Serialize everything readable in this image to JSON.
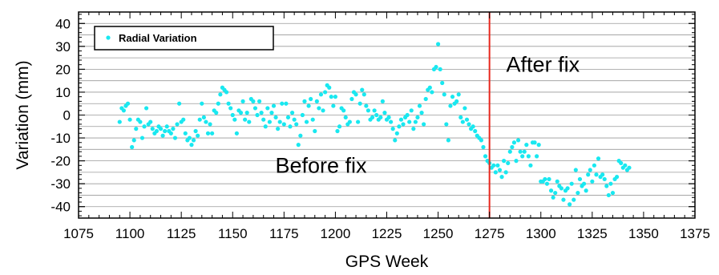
{
  "chart_data": {
    "type": "scatter",
    "xlabel": "GPS Week",
    "ylabel": "Variation (mm)",
    "xlim": [
      1075,
      1375
    ],
    "ylim": [
      -45,
      45
    ],
    "xticks": [
      1075,
      1100,
      1125,
      1150,
      1175,
      1200,
      1225,
      1250,
      1275,
      1300,
      1325,
      1350,
      1375
    ],
    "yticks": [
      -40,
      -30,
      -20,
      -10,
      0,
      10,
      20,
      30,
      40
    ],
    "grid": "horizontal",
    "legend": {
      "position": "top-left",
      "entries": [
        "Radial Variation"
      ]
    },
    "annotations": [
      {
        "text": "Before fix",
        "x": 1193,
        "y": -22
      },
      {
        "text": "After fix",
        "x": 1301,
        "y": 22
      }
    ],
    "vline": {
      "x": 1275,
      "color": "#e8281e"
    },
    "series": [
      {
        "name": "Radial Variation",
        "color": "#19e8f0",
        "points": [
          [
            1095,
            -3
          ],
          [
            1096,
            3
          ],
          [
            1097,
            2
          ],
          [
            1098,
            4
          ],
          [
            1099,
            5
          ],
          [
            1100,
            -2
          ],
          [
            1101,
            -14
          ],
          [
            1102,
            -11
          ],
          [
            1103,
            -6
          ],
          [
            1104,
            -2
          ],
          [
            1105,
            -3
          ],
          [
            1106,
            -10
          ],
          [
            1107,
            -5
          ],
          [
            1108,
            3
          ],
          [
            1109,
            -4
          ],
          [
            1110,
            -3
          ],
          [
            1111,
            -6
          ],
          [
            1112,
            -8
          ],
          [
            1113,
            -7
          ],
          [
            1114,
            -5
          ],
          [
            1115,
            -6
          ],
          [
            1116,
            -9
          ],
          [
            1117,
            -7
          ],
          [
            1118,
            -5
          ],
          [
            1119,
            -7
          ],
          [
            1120,
            -8
          ],
          [
            1121,
            -6
          ],
          [
            1122,
            -10
          ],
          [
            1123,
            -4
          ],
          [
            1124,
            5
          ],
          [
            1125,
            -3
          ],
          [
            1126,
            -2
          ],
          [
            1127,
            -8
          ],
          [
            1128,
            -11
          ],
          [
            1129,
            -10
          ],
          [
            1130,
            -13
          ],
          [
            1131,
            -11
          ],
          [
            1132,
            -7
          ],
          [
            1133,
            -9
          ],
          [
            1134,
            -2
          ],
          [
            1135,
            5
          ],
          [
            1136,
            -1
          ],
          [
            1137,
            -3
          ],
          [
            1138,
            -8
          ],
          [
            1139,
            -4
          ],
          [
            1140,
            -8
          ],
          [
            1141,
            2
          ],
          [
            1142,
            1
          ],
          [
            1143,
            5
          ],
          [
            1144,
            9
          ],
          [
            1145,
            12
          ],
          [
            1146,
            11
          ],
          [
            1147,
            10
          ],
          [
            1148,
            5
          ],
          [
            1149,
            3
          ],
          [
            1150,
            0
          ],
          [
            1151,
            -2
          ],
          [
            1152,
            -8
          ],
          [
            1153,
            2
          ],
          [
            1154,
            1
          ],
          [
            1155,
            6
          ],
          [
            1156,
            -2
          ],
          [
            1157,
            1
          ],
          [
            1158,
            -3
          ],
          [
            1159,
            7
          ],
          [
            1160,
            6
          ],
          [
            1161,
            3
          ],
          [
            1162,
            0
          ],
          [
            1163,
            6
          ],
          [
            1164,
            1
          ],
          [
            1165,
            -2
          ],
          [
            1166,
            -5
          ],
          [
            1167,
            3
          ],
          [
            1168,
            -3
          ],
          [
            1169,
            1
          ],
          [
            1170,
            4
          ],
          [
            1171,
            -1
          ],
          [
            1172,
            -6
          ],
          [
            1173,
            -3
          ],
          [
            1174,
            5
          ],
          [
            1175,
            -4
          ],
          [
            1176,
            5
          ],
          [
            1177,
            -1
          ],
          [
            1178,
            -5
          ],
          [
            1179,
            1
          ],
          [
            1180,
            -2
          ],
          [
            1181,
            -4
          ],
          [
            1182,
            -13
          ],
          [
            1183,
            -9
          ],
          [
            1184,
            0
          ],
          [
            1185,
            6
          ],
          [
            1186,
            -3
          ],
          [
            1187,
            4
          ],
          [
            1188,
            7
          ],
          [
            1189,
            -2
          ],
          [
            1190,
            -7
          ],
          [
            1191,
            6
          ],
          [
            1192,
            3
          ],
          [
            1193,
            9
          ],
          [
            1194,
            2
          ],
          [
            1195,
            10
          ],
          [
            1196,
            13
          ],
          [
            1197,
            12
          ],
          [
            1198,
            8
          ],
          [
            1199,
            4
          ],
          [
            1200,
            8
          ],
          [
            1201,
            -7
          ],
          [
            1202,
            -5
          ],
          [
            1203,
            3
          ],
          [
            1204,
            2
          ],
          [
            1205,
            -1
          ],
          [
            1206,
            -4
          ],
          [
            1207,
            -3
          ],
          [
            1208,
            7
          ],
          [
            1209,
            10
          ],
          [
            1210,
            9
          ],
          [
            1211,
            -3
          ],
          [
            1212,
            5
          ],
          [
            1213,
            11
          ],
          [
            1214,
            9
          ],
          [
            1215,
            4
          ],
          [
            1216,
            2
          ],
          [
            1217,
            -2
          ],
          [
            1218,
            -1
          ],
          [
            1219,
            2
          ],
          [
            1220,
            0
          ],
          [
            1221,
            -2
          ],
          [
            1222,
            -1
          ],
          [
            1223,
            6
          ],
          [
            1224,
            1
          ],
          [
            1225,
            -2
          ],
          [
            1226,
            -1
          ],
          [
            1227,
            -3
          ],
          [
            1228,
            -6
          ],
          [
            1229,
            -11
          ],
          [
            1230,
            -8
          ],
          [
            1231,
            -5
          ],
          [
            1232,
            -2
          ],
          [
            1233,
            -4
          ],
          [
            1234,
            -1
          ],
          [
            1235,
            0
          ],
          [
            1236,
            -3
          ],
          [
            1237,
            2
          ],
          [
            1238,
            -6
          ],
          [
            1239,
            -3
          ],
          [
            1240,
            -1
          ],
          [
            1241,
            4
          ],
          [
            1242,
            1
          ],
          [
            1243,
            -4
          ],
          [
            1244,
            7
          ],
          [
            1245,
            11
          ],
          [
            1246,
            12
          ],
          [
            1247,
            10
          ],
          [
            1248,
            20
          ],
          [
            1249,
            21
          ],
          [
            1250,
            31
          ],
          [
            1251,
            20
          ],
          [
            1252,
            14
          ],
          [
            1253,
            9
          ],
          [
            1254,
            -4
          ],
          [
            1255,
            -11
          ],
          [
            1256,
            4
          ],
          [
            1257,
            8
          ],
          [
            1258,
            5
          ],
          [
            1259,
            6
          ],
          [
            1260,
            9
          ],
          [
            1261,
            -1
          ],
          [
            1262,
            -3
          ],
          [
            1263,
            3
          ],
          [
            1264,
            -2
          ],
          [
            1265,
            -4
          ],
          [
            1266,
            -6
          ],
          [
            1267,
            -5
          ],
          [
            1268,
            -7
          ],
          [
            1269,
            -9
          ],
          [
            1270,
            -10
          ],
          [
            1271,
            -11
          ],
          [
            1272,
            -14
          ],
          [
            1273,
            -18
          ],
          [
            1274,
            -20
          ],
          [
            1275,
            -21
          ],
          [
            1276,
            -23
          ],
          [
            1277,
            -22
          ],
          [
            1278,
            -25
          ],
          [
            1279,
            -22
          ],
          [
            1280,
            -24
          ],
          [
            1281,
            -27
          ],
          [
            1282,
            -20
          ],
          [
            1283,
            -25
          ],
          [
            1284,
            -21
          ],
          [
            1285,
            -16
          ],
          [
            1286,
            -14
          ],
          [
            1287,
            -12
          ],
          [
            1288,
            -20
          ],
          [
            1289,
            -11
          ],
          [
            1290,
            -16
          ],
          [
            1291,
            -18
          ],
          [
            1292,
            -16
          ],
          [
            1293,
            -13
          ],
          [
            1294,
            -18
          ],
          [
            1295,
            -22
          ],
          [
            1296,
            -12
          ],
          [
            1297,
            -12
          ],
          [
            1298,
            -18
          ],
          [
            1299,
            -13
          ],
          [
            1300,
            -29
          ],
          [
            1301,
            -29
          ],
          [
            1302,
            -28
          ],
          [
            1303,
            -30
          ],
          [
            1304,
            -28
          ],
          [
            1305,
            -33
          ],
          [
            1306,
            -36
          ],
          [
            1307,
            -34
          ],
          [
            1308,
            -29
          ],
          [
            1309,
            -31
          ],
          [
            1310,
            -32
          ],
          [
            1311,
            -37
          ],
          [
            1312,
            -33
          ],
          [
            1313,
            -32
          ],
          [
            1314,
            -39
          ],
          [
            1315,
            -30
          ],
          [
            1316,
            -37
          ],
          [
            1317,
            -24
          ],
          [
            1318,
            -34
          ],
          [
            1319,
            -28
          ],
          [
            1320,
            -31
          ],
          [
            1321,
            -30
          ],
          [
            1322,
            -33
          ],
          [
            1323,
            -26
          ],
          [
            1324,
            -24
          ],
          [
            1325,
            -29
          ],
          [
            1326,
            -22
          ],
          [
            1327,
            -26
          ],
          [
            1328,
            -19
          ],
          [
            1329,
            -27
          ],
          [
            1330,
            -26
          ],
          [
            1331,
            -28
          ],
          [
            1332,
            -31
          ],
          [
            1333,
            -35
          ],
          [
            1334,
            -30
          ],
          [
            1335,
            -34
          ],
          [
            1336,
            -28
          ],
          [
            1337,
            -27
          ],
          [
            1338,
            -20
          ],
          [
            1339,
            -21
          ],
          [
            1340,
            -23
          ],
          [
            1341,
            -22
          ],
          [
            1342,
            -24
          ],
          [
            1343,
            -23
          ]
        ]
      }
    ]
  }
}
